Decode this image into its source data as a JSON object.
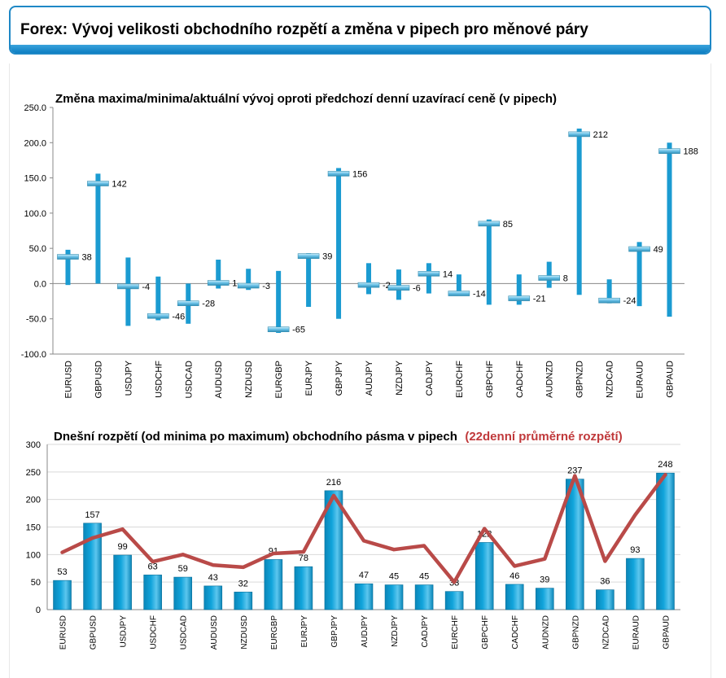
{
  "header": {
    "title": "Forex: Vývoj velikosti obchodního rozpětí a změna v pipech pro měnové páry"
  },
  "chart_data": [
    {
      "type": "range",
      "title": "Změna maxima/minima/aktuální vývoj oproti předchozí denní uzavírací ceně (v pipech)",
      "xlabel": "",
      "ylabel": "",
      "ylim": [
        -100,
        250
      ],
      "yticks": [
        "250.0",
        "200.0",
        "150.0",
        "100.0",
        "50.0",
        "0.0",
        "-50.0",
        "-100.0"
      ],
      "categories": [
        "EURUSD",
        "GBPUSD",
        "USDJPY",
        "USDCHF",
        "USDCAD",
        "AUDUSD",
        "NZDUSD",
        "EURGBP",
        "EURJPY",
        "GBPJPY",
        "AUDJPY",
        "NZDJPY",
        "CADJPY",
        "EURCHF",
        "GBPCHF",
        "CADCHF",
        "AUDNZD",
        "GBPNZD",
        "NZDCAD",
        "EURAUD",
        "GBPAUD"
      ],
      "low": [
        -2,
        0,
        -60,
        -52,
        -57,
        -7,
        -9,
        -70,
        -33,
        -50,
        -15,
        -23,
        -14,
        -17,
        -30,
        -30,
        -6,
        -16,
        -28,
        -32,
        -47
      ],
      "high": [
        48,
        156,
        37,
        10,
        0,
        34,
        21,
        18,
        43,
        164,
        29,
        20,
        29,
        13,
        91,
        13,
        31,
        220,
        6,
        59,
        200
      ],
      "current": [
        38,
        142,
        -4,
        -46,
        -28,
        1,
        -3,
        -65,
        39,
        156,
        -2,
        -6,
        14,
        -14,
        85,
        -21,
        8,
        212,
        -24,
        49,
        188
      ],
      "labels": [
        "38",
        "142",
        "-4",
        "-46",
        "-28",
        "1",
        "-3",
        "-65",
        "39",
        "156",
        "-2",
        "-6",
        "14",
        "-14",
        "85",
        "-21",
        "8",
        "212",
        "-24",
        "49",
        "188"
      ],
      "colors": {
        "bar": "#1b9bd1",
        "marker": "#6ec3e8"
      },
      "grid": false,
      "legend": "none"
    },
    {
      "type": "bar",
      "title": "Dnešní rozpětí (od minima po maximum) obchodního pásma v pipech",
      "subtitle": "(22denní průměrné rozpětí)",
      "xlabel": "",
      "ylabel": "",
      "ylim": [
        0,
        300
      ],
      "yticks": [
        "300",
        "250",
        "200",
        "150",
        "100",
        "50",
        "0"
      ],
      "categories": [
        "EURUSD",
        "GBPUSD",
        "USDJPY",
        "USDCHF",
        "USDCAD",
        "AUDUSD",
        "NZDUSD",
        "EURGBP",
        "EURJPY",
        "GBPJPY",
        "AUDJPY",
        "NZDJPY",
        "CADJPY",
        "EURCHF",
        "GBPCHF",
        "CADCHF",
        "AUDNZD",
        "GBPNZD",
        "NZDCAD",
        "EURAUD",
        "GBPAUD"
      ],
      "values": [
        53,
        157,
        99,
        63,
        59,
        43,
        32,
        91,
        78,
        216,
        47,
        45,
        45,
        33,
        122,
        46,
        39,
        237,
        36,
        93,
        248
      ],
      "labels": [
        "53",
        "157",
        "99",
        "63",
        "59",
        "43",
        "32",
        "91",
        "78",
        "216",
        "47",
        "45",
        "45",
        "33",
        "122",
        "46",
        "39",
        "237",
        "36",
        "93",
        "248"
      ],
      "average": [
        104,
        130,
        146,
        87,
        100,
        81,
        77,
        102,
        105,
        207,
        125,
        109,
        116,
        50,
        147,
        79,
        92,
        243,
        88,
        172,
        245
      ],
      "colors": {
        "bar": "#11a4db",
        "line": "#b94a48"
      },
      "grid": true,
      "legend": "none"
    }
  ]
}
